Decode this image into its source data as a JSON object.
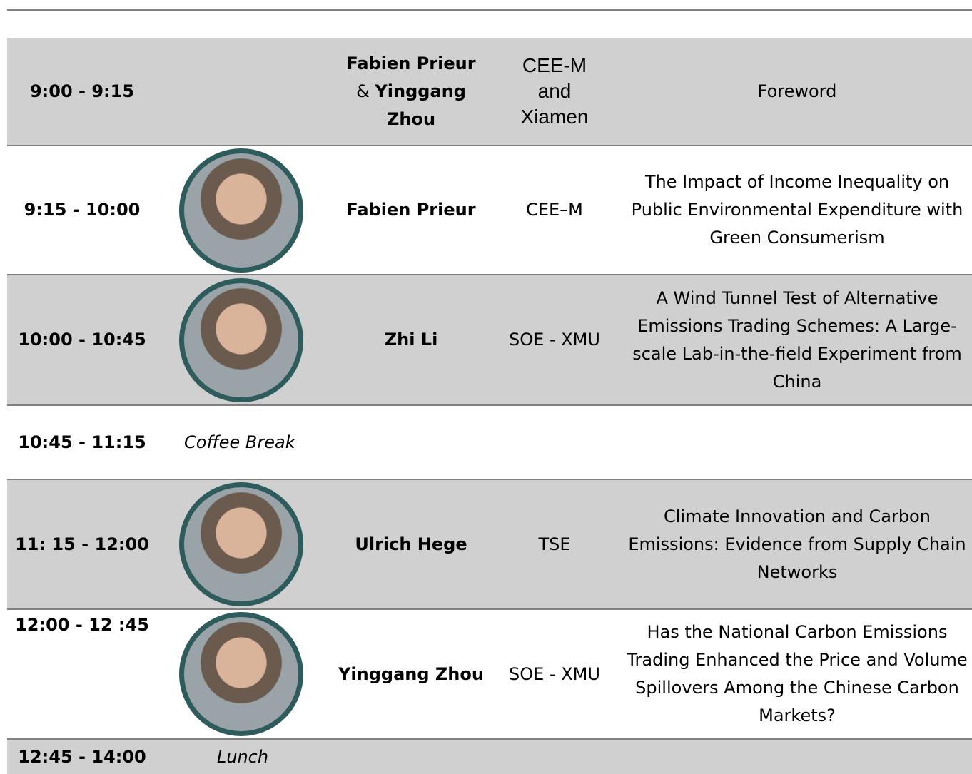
{
  "schedule": {
    "rows": [
      {
        "time": "9:00 - 9:15",
        "speakers": [
          "Fabien Prieur",
          "Yinggang Zhou"
        ],
        "joiner": "&",
        "institution": "CEE-M and Xiamen",
        "title": "Foreword"
      },
      {
        "time": "9:15 - 10:00",
        "speaker": "Fabien Prieur",
        "institution": "CEE–M",
        "title": "The Impact of Income Inequality on Public Environmental Expenditure with Green Consumerism"
      },
      {
        "time": "10:00 - 10:45",
        "speaker": "Zhi Li",
        "institution": "SOE - XMU",
        "title": "A Wind Tunnel Test of Alternative Emissions Trading Schemes: A Large-scale Lab-in-the-field Experiment from China"
      },
      {
        "time": "10:45 - 11:15",
        "note": "Coffee Break"
      },
      {
        "time": "11: 15 - 12:00",
        "speaker": "Ulrich Hege",
        "institution": "TSE",
        "title": "Climate Innovation and Carbon Emissions: Evidence from Supply Chain Networks"
      },
      {
        "time": "12:00 - 12 :45",
        "speaker": "Yinggang Zhou",
        "institution": "SOE - XMU",
        "title": "Has the National Carbon Emissions Trading Enhanced the Price and Volume Spillovers Among the Chinese Carbon Markets?"
      },
      {
        "time": "12:45 - 14:00",
        "note": "Lunch"
      }
    ]
  }
}
